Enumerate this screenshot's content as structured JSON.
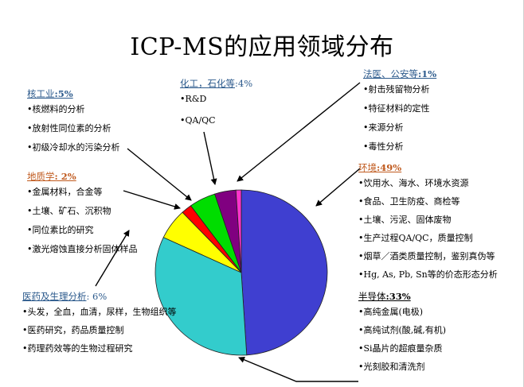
{
  "title": "ICP-MS的应用领域分布",
  "chart_data": {
    "type": "pie",
    "slices": [
      {
        "name": "环境",
        "value": 49,
        "color": "#3f3fd0"
      },
      {
        "name": "半导体",
        "value": 33,
        "color": "#33cccc"
      },
      {
        "name": "医药及生理分析",
        "value": 6,
        "color": "#ffff00"
      },
      {
        "name": "地质学",
        "value": 2,
        "color": "#ff0000"
      },
      {
        "name": "核工业",
        "value": 5,
        "color": "#00dd00"
      },
      {
        "name": "化工，石化等",
        "value": 4,
        "color": "#800080"
      },
      {
        "name": "法医、公安等",
        "value": 1,
        "color": "#ff33cc"
      }
    ]
  },
  "callouts": {
    "nuclear": {
      "label": "核工业",
      "pct": ":5%",
      "items": [
        "•核燃料的分析",
        "•放射性同位素的分析",
        "•初级冷却水的污染分析"
      ]
    },
    "chem": {
      "label": "化工，石化等",
      "pct": ":4%",
      "items": [
        "•R&D",
        "•QA/QC"
      ]
    },
    "forensic": {
      "label": "法医、公安等",
      "pct": ":1%",
      "items": [
        "•射击残留物分析",
        "•特征材料的定性",
        "•来源分析",
        "•毒性分析"
      ]
    },
    "geo": {
      "label": "地质学",
      "pct": ": 2%",
      "items": [
        "•金属材料，合金等",
        "•土壤、矿石、沉积物",
        "•同位素比的研究",
        "•激光熔蚀直接分析固体样品"
      ]
    },
    "env": {
      "label": "环境",
      "pct": ":49%",
      "items": [
        "•饮用水、海水、环境水资源",
        "•食品、卫生防疫、商检等",
        "•土壤、污泥、固体废物",
        "•生产过程QA/QC，质量控制",
        "•烟草／酒类质量控制，鉴别真伪等",
        "•Hg, As, Pb, Sn等的价态形态分析"
      ]
    },
    "semi": {
      "label": "半导体",
      "pct": ":33%",
      "items": [
        "•高纯金属(电极)",
        "•高纯试剂(酸,碱,有机)",
        "•Si晶片的超痕量杂质",
        "•光刻胶和清洗剂"
      ]
    },
    "med": {
      "label": "医药及生理分析",
      "pct": ": 6%",
      "items": [
        "•头发，全血，血清，尿样，生物组织等",
        "•医药研究，药品质量控制",
        "•药理药效等的生物过程研究"
      ]
    }
  }
}
